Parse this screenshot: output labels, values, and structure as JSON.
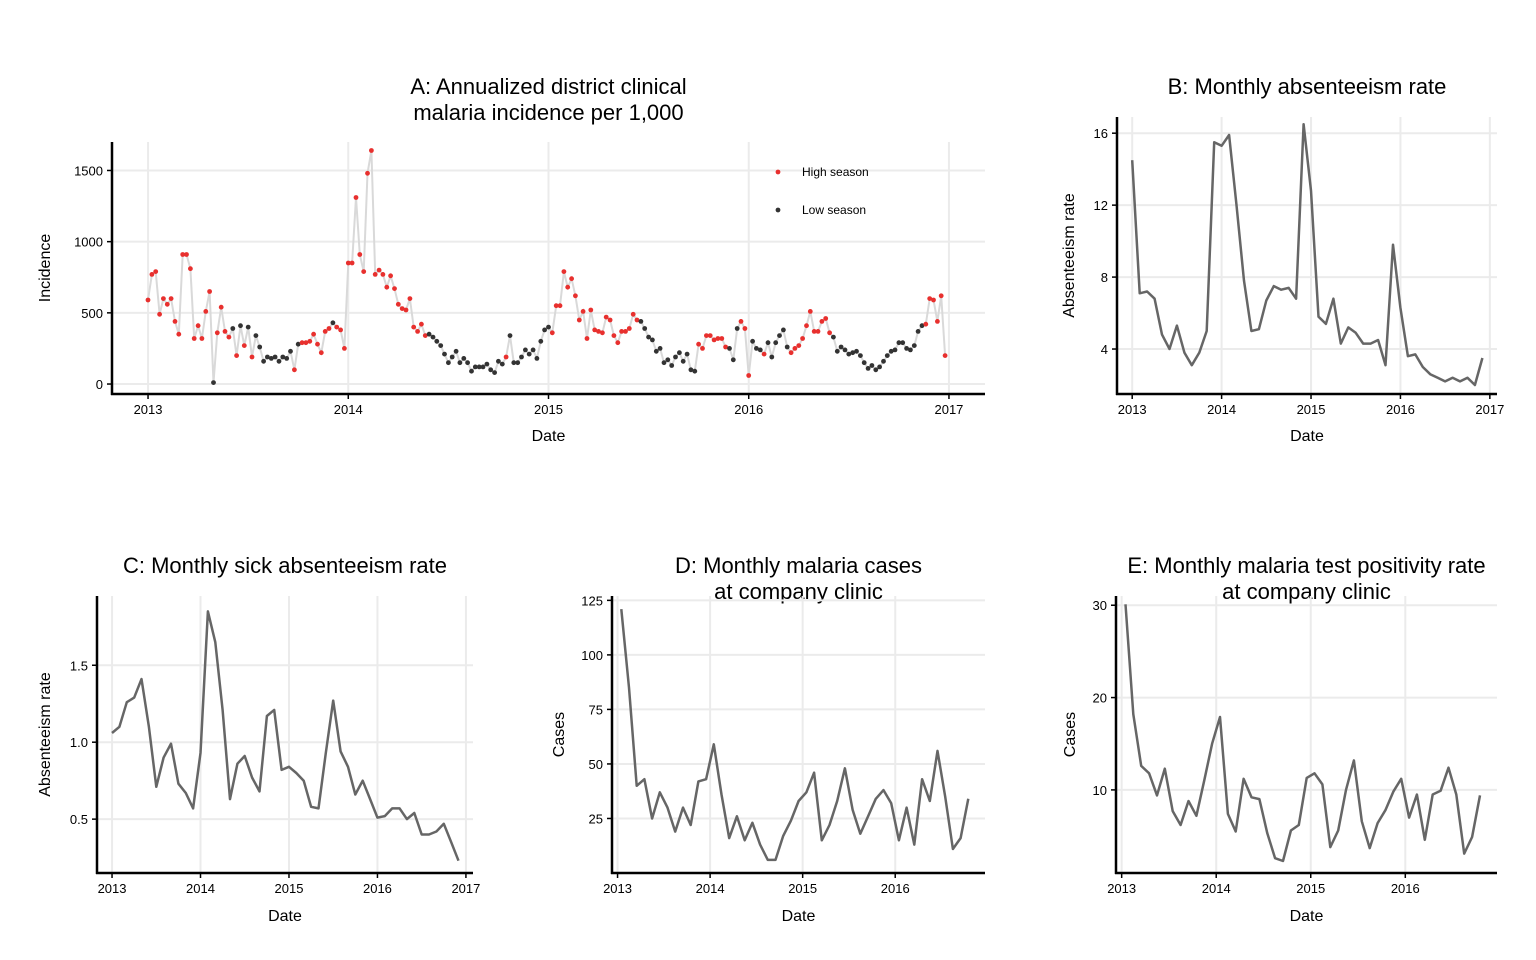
{
  "chart_data": [
    {
      "id": "A",
      "type": "scatter",
      "title": [
        "A: Annualized district clinical",
        "malaria incidence per 1,000"
      ],
      "xlabel": "Date",
      "ylabel": "Incidence",
      "x_ticks": [
        "2013",
        "2014",
        "2015",
        "2016",
        "2017"
      ],
      "y_ticks": [
        0,
        500,
        1000,
        1500
      ],
      "xlim": [
        2012.82,
        2017.18
      ],
      "ylim": [
        -70,
        1700
      ],
      "grid": true,
      "line_color": "#d9d9d9",
      "legend": {
        "position": "top-right",
        "entries": [
          {
            "label": "High season",
            "color": "#e8302e"
          },
          {
            "label": "Low season",
            "color": "#333333"
          }
        ]
      },
      "x_start": 2013.0,
      "x_step": 0.01923,
      "values": [
        590,
        770,
        790,
        490,
        600,
        560,
        600,
        440,
        350,
        910,
        910,
        810,
        320,
        410,
        320,
        510,
        650,
        10,
        360,
        540,
        370,
        330,
        390,
        200,
        410,
        270,
        400,
        190,
        340,
        260,
        160,
        190,
        180,
        190,
        160,
        190,
        180,
        230,
        100,
        280,
        290,
        290,
        300,
        350,
        280,
        220,
        370,
        390,
        430,
        400,
        380,
        250,
        850,
        850,
        1310,
        910,
        790,
        1480,
        1640,
        770,
        800,
        770,
        680,
        760,
        670,
        560,
        530,
        520,
        600,
        400,
        370,
        420,
        340,
        350,
        330,
        300,
        270,
        210,
        150,
        190,
        230,
        150,
        180,
        150,
        90,
        120,
        120,
        120,
        140,
        100,
        80,
        160,
        140,
        190,
        340,
        150,
        150,
        190,
        240,
        210,
        240,
        180,
        300,
        380,
        400,
        360,
        550,
        550,
        790,
        680,
        740,
        620,
        450,
        510,
        320,
        520,
        380,
        370,
        360,
        470,
        450,
        340,
        290,
        370,
        370,
        390,
        490,
        450,
        440,
        390,
        330,
        310,
        230,
        250,
        150,
        170,
        130,
        190,
        220,
        160,
        210,
        100,
        90,
        280,
        250,
        340,
        340,
        310,
        320,
        320,
        260,
        250,
        170,
        390,
        440,
        390,
        60,
        300,
        250,
        240,
        210,
        290,
        190,
        290,
        340,
        380,
        260,
        220,
        250,
        270,
        320,
        410,
        510,
        370,
        370,
        440,
        460,
        360,
        330,
        230,
        260,
        240,
        210,
        220,
        230,
        200,
        150,
        110,
        130,
        100,
        120,
        160,
        200,
        230,
        240,
        290,
        290,
        250,
        240,
        270,
        370,
        410,
        420,
        600,
        590,
        440,
        620,
        200
      ],
      "season": "HHHHHHHHHHHHHHHHHLHHHHLHLHLHLLLLLLLLLLHLHHHHHHHHLHHHHHHHHHHHHHHHHHHHHHHHHLLLLLLLLLLLLLLLLLLLLHLLLLLLLLLLLHHHHHHHHHHHHHHHHHHHHHHHLLLLLLLLLLLLLLLHHHHHHHHLLLHHHLLLHLLLLLLHHHHHHHHHHHLLLLLLLLLLLLLLLLLLLLLLLLHHHHHHHL"
    },
    {
      "id": "B",
      "type": "line",
      "title": [
        "B: Monthly absenteeism rate"
      ],
      "xlabel": "Date",
      "ylabel": "Absenteeism rate",
      "x_ticks": [
        "2013",
        "2014",
        "2015",
        "2016",
        "2017"
      ],
      "y_ticks": [
        4,
        8,
        12,
        16
      ],
      "xlim": [
        2012.83,
        2017.08
      ],
      "ylim": [
        1.5,
        16.9
      ],
      "grid": true,
      "line_color": "#666666",
      "x_start": 2013.0,
      "x_step": 0.08333,
      "values": [
        14.5,
        7.1,
        7.2,
        6.8,
        4.8,
        4.0,
        5.3,
        3.8,
        3.1,
        3.8,
        5.0,
        15.5,
        15.3,
        15.9,
        12.0,
        7.8,
        5.0,
        5.1,
        6.7,
        7.5,
        7.3,
        7.4,
        6.8,
        16.5,
        12.8,
        5.8,
        5.4,
        6.8,
        4.3,
        5.2,
        4.9,
        4.3,
        4.3,
        4.5,
        3.1,
        9.8,
        6.3,
        3.6,
        3.7,
        3.0,
        2.6,
        2.4,
        2.2,
        2.4,
        2.2,
        2.4,
        2.0,
        3.5
      ]
    },
    {
      "id": "C",
      "type": "line",
      "title": [
        "C: Monthly sick absenteeism rate"
      ],
      "xlabel": "Date",
      "ylabel": "Absenteeism rate",
      "x_ticks": [
        "2013",
        "2014",
        "2015",
        "2016",
        "2017"
      ],
      "y_ticks": [
        "0.5",
        "1.0",
        "1.5"
      ],
      "y_tick_values": [
        0.5,
        1.0,
        1.5
      ],
      "xlim": [
        2012.83,
        2017.08
      ],
      "ylim": [
        0.15,
        1.95
      ],
      "grid": true,
      "line_color": "#666666",
      "x_start": 2013.0,
      "x_step": 0.08333,
      "values": [
        1.06,
        1.1,
        1.26,
        1.29,
        1.41,
        1.1,
        0.71,
        0.9,
        0.99,
        0.73,
        0.67,
        0.57,
        0.93,
        1.85,
        1.65,
        1.21,
        0.63,
        0.86,
        0.91,
        0.77,
        0.68,
        1.17,
        1.21,
        0.82,
        0.84,
        0.8,
        0.75,
        0.58,
        0.57,
        0.93,
        1.27,
        0.94,
        0.84,
        0.66,
        0.75,
        0.63,
        0.51,
        0.52,
        0.57,
        0.57,
        0.5,
        0.54,
        0.4,
        0.4,
        0.42,
        0.47,
        0.35,
        0.23
      ]
    },
    {
      "id": "D",
      "type": "line",
      "title": [
        "D: Monthly malaria cases",
        "at company clinic"
      ],
      "xlabel": "Date",
      "ylabel": "Cases",
      "x_ticks": [
        "2013",
        "2014",
        "2015",
        "2016"
      ],
      "y_ticks": [
        25,
        50,
        75,
        100,
        125
      ],
      "xlim": [
        2012.94,
        2016.97
      ],
      "ylim": [
        0,
        127
      ],
      "grid": true,
      "line_color": "#666666",
      "x_start": 2013.04,
      "x_step": 0.08333,
      "values": [
        121,
        85,
        40,
        43,
        25,
        37,
        30,
        19,
        30,
        22,
        42,
        43,
        59,
        36,
        16,
        26,
        15,
        23,
        13,
        6,
        6,
        17,
        24,
        33,
        37,
        46,
        15,
        22,
        33,
        48,
        29,
        18,
        26,
        34,
        38,
        32,
        15,
        30,
        13,
        43,
        33,
        56,
        35,
        11,
        16,
        34
      ]
    },
    {
      "id": "E",
      "type": "line",
      "title": [
        "E: Monthly malaria test positivity rate",
        "at company clinic"
      ],
      "xlabel": "Date",
      "ylabel": "Cases",
      "x_ticks": [
        "2013",
        "2014",
        "2015",
        "2016"
      ],
      "y_ticks": [
        10,
        20,
        30
      ],
      "xlim": [
        2012.94,
        2016.97
      ],
      "ylim": [
        1,
        31
      ],
      "grid": true,
      "line_color": "#666666",
      "x_start": 2013.04,
      "x_step": 0.08333,
      "values": [
        30.1,
        18.2,
        12.6,
        11.8,
        9.4,
        12.3,
        7.7,
        6.2,
        8.8,
        7.2,
        11.0,
        15.0,
        17.9,
        7.4,
        5.5,
        11.2,
        9.2,
        9.0,
        5.3,
        2.6,
        2.3,
        5.6,
        6.2,
        11.3,
        11.8,
        10.6,
        3.8,
        5.6,
        10.0,
        13.2,
        6.6,
        3.7,
        6.4,
        7.8,
        9.8,
        11.2,
        7.0,
        9.5,
        4.6,
        9.5,
        9.9,
        12.4,
        9.5,
        3.1,
        4.9,
        9.4
      ]
    }
  ]
}
